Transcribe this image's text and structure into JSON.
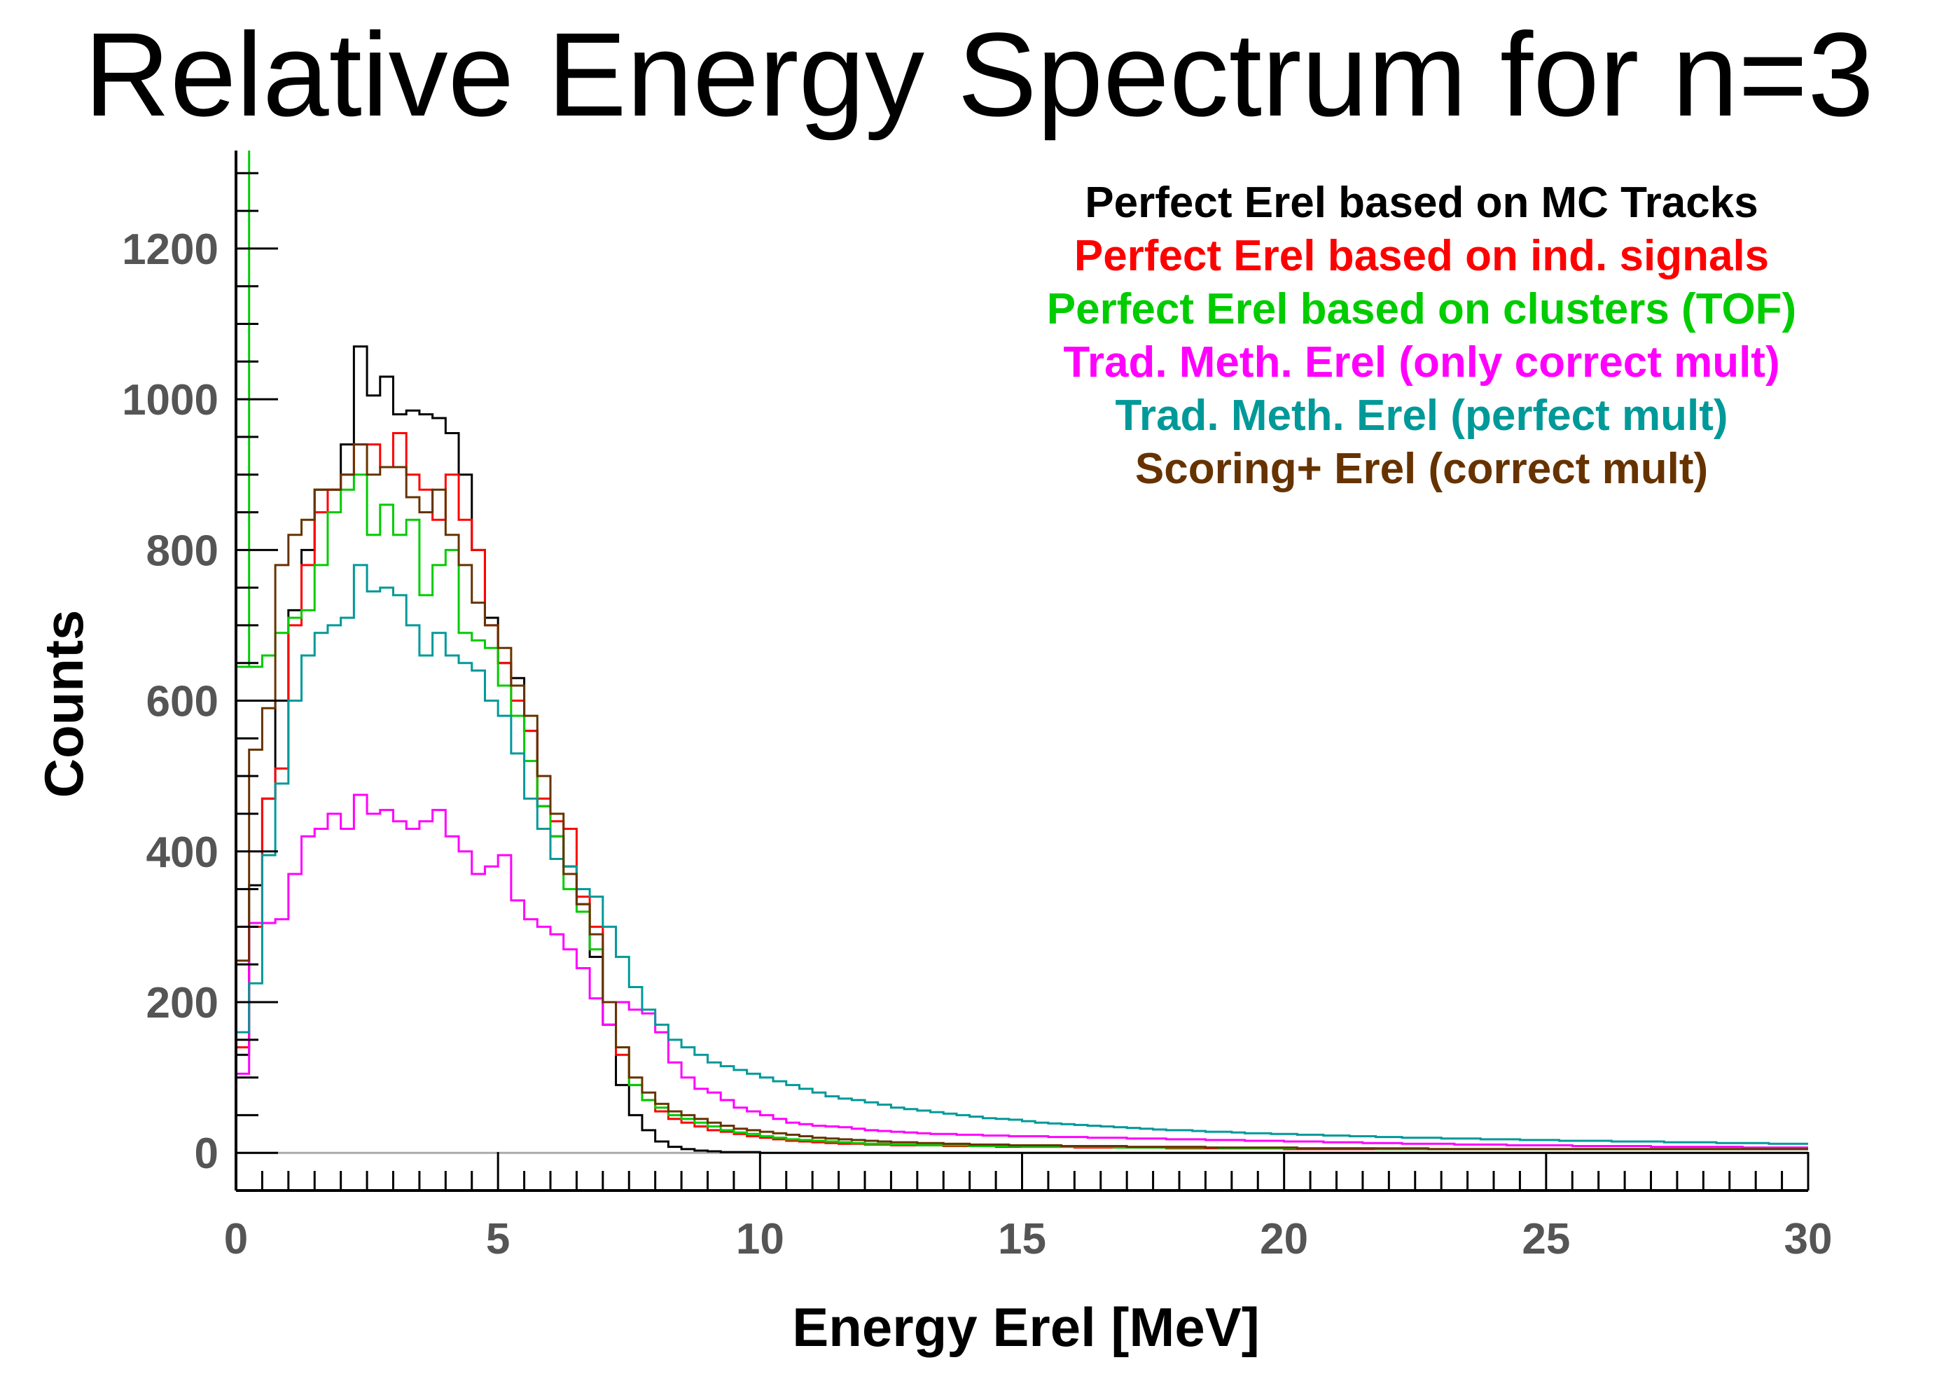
{
  "chart_data": {
    "type": "line",
    "title": "Relative Energy Spectrum for n=3",
    "xlabel": "Energy Erel [MeV]",
    "ylabel": "Counts",
    "xlim": [
      0,
      30
    ],
    "ylim": [
      -50,
      1330
    ],
    "xticks": [
      0,
      5,
      10,
      15,
      20,
      25,
      30
    ],
    "xtick_labels": [
      "0",
      "5",
      "10",
      "15",
      "20",
      "25",
      "30"
    ],
    "yticks": [
      0,
      200,
      400,
      600,
      800,
      1000,
      1200
    ],
    "ytick_labels": [
      "0",
      "200",
      "400",
      "600",
      "800",
      "1000",
      "1200"
    ],
    "grid": false,
    "bin_width": 0.25,
    "legend_position": "top-right",
    "series": [
      {
        "name": "Perfect Erel based on MC Tracks",
        "color": "#000000",
        "values": [
          130,
          355,
          470,
          600,
          720,
          800,
          880,
          880,
          940,
          1070,
          1005,
          1030,
          980,
          985,
          980,
          975,
          955,
          900,
          800,
          710,
          650,
          630,
          560,
          460,
          420,
          380,
          330,
          260,
          170,
          90,
          50,
          30,
          15,
          8,
          5,
          3,
          2,
          1,
          1,
          1,
          0,
          0,
          0,
          0,
          0,
          0,
          0,
          0,
          0,
          0,
          0,
          0,
          0,
          0,
          0,
          0,
          0,
          0,
          0,
          0,
          0,
          0,
          0,
          0,
          0,
          0,
          0,
          0,
          0,
          0,
          0,
          0,
          0,
          0,
          0,
          0,
          0,
          0,
          0,
          0,
          0,
          0,
          0,
          0,
          0,
          0,
          0,
          0,
          0,
          0,
          0,
          0,
          0,
          0,
          0,
          0,
          0,
          0,
          0,
          0,
          0,
          0,
          0,
          0,
          0,
          0,
          0,
          0,
          0,
          0,
          0,
          0,
          0,
          0,
          0,
          0,
          0,
          0,
          0,
          0
        ]
      },
      {
        "name": "Perfect Erel based on ind. signals",
        "color": "#ff0000",
        "values": [
          140,
          300,
          470,
          510,
          700,
          780,
          850,
          880,
          900,
          940,
          940,
          910,
          955,
          900,
          880,
          840,
          900,
          840,
          800,
          700,
          650,
          600,
          560,
          470,
          440,
          430,
          340,
          300,
          200,
          130,
          90,
          70,
          55,
          45,
          40,
          35,
          30,
          28,
          25,
          22,
          20,
          18,
          16,
          15,
          14,
          13,
          12,
          12,
          11,
          11,
          10,
          10,
          10,
          10,
          9,
          9,
          9,
          9,
          8,
          8,
          8,
          8,
          8,
          8,
          7,
          7,
          7,
          7,
          7,
          7,
          7,
          6,
          6,
          6,
          6,
          6,
          6,
          6,
          6,
          6,
          5,
          5,
          5,
          5,
          5,
          5,
          5,
          5,
          5,
          5,
          5,
          5,
          5,
          5,
          5,
          5,
          5,
          5,
          5,
          5,
          5,
          5,
          5,
          5,
          5,
          5,
          5,
          5,
          5,
          5,
          5,
          5,
          5,
          5,
          5,
          5,
          5,
          5,
          5,
          5
        ]
      },
      {
        "name": "Perfect Erel based on clusters (TOF)",
        "color": "#00cc00",
        "values": [
          645,
          645,
          660,
          690,
          710,
          720,
          780,
          850,
          880,
          900,
          820,
          860,
          820,
          840,
          740,
          780,
          800,
          690,
          680,
          670,
          620,
          580,
          520,
          460,
          420,
          350,
          320,
          270,
          200,
          140,
          90,
          70,
          60,
          50,
          45,
          40,
          35,
          30,
          27,
          25,
          22,
          20,
          18,
          17,
          16,
          15,
          14,
          13,
          12,
          12,
          11,
          11,
          10,
          10,
          10,
          10,
          9,
          9,
          9,
          9,
          8,
          8,
          8,
          8,
          8,
          8,
          8,
          7,
          7,
          7,
          7,
          7,
          7,
          7,
          7,
          6,
          6,
          6,
          6,
          6,
          6,
          6,
          6,
          6,
          6,
          6,
          6,
          5,
          5,
          5,
          5,
          5,
          5,
          5,
          5,
          5,
          5,
          5,
          5,
          5,
          5,
          5,
          5,
          5,
          5,
          5,
          5,
          5,
          5,
          5,
          5,
          5,
          5,
          5,
          5,
          5,
          5,
          5,
          5,
          5
        ]
      },
      {
        "name": "Trad. Meth. Erel (only correct mult)",
        "color": "#ff00ff",
        "values": [
          105,
          305,
          305,
          310,
          370,
          420,
          430,
          450,
          430,
          475,
          450,
          455,
          440,
          430,
          440,
          455,
          420,
          400,
          370,
          380,
          395,
          335,
          310,
          300,
          290,
          270,
          245,
          205,
          170,
          200,
          190,
          185,
          160,
          120,
          100,
          85,
          80,
          70,
          60,
          55,
          50,
          45,
          40,
          38,
          36,
          35,
          34,
          32,
          30,
          29,
          28,
          27,
          26,
          25,
          25,
          24,
          24,
          23,
          23,
          22,
          22,
          22,
          21,
          21,
          21,
          20,
          20,
          20,
          19,
          19,
          19,
          18,
          18,
          18,
          17,
          17,
          17,
          16,
          16,
          16,
          15,
          15,
          15,
          14,
          14,
          14,
          13,
          13,
          13,
          12,
          12,
          12,
          12,
          11,
          11,
          11,
          11,
          10,
          10,
          10,
          10,
          10,
          9,
          9,
          9,
          9,
          9,
          9,
          8,
          8,
          8,
          8,
          8,
          8,
          8,
          7,
          7,
          7,
          7,
          7
        ]
      },
      {
        "name": "Trad. Meth. Erel (perfect mult)",
        "color": "#009999",
        "values": [
          160,
          225,
          395,
          490,
          600,
          660,
          690,
          700,
          710,
          780,
          745,
          750,
          740,
          700,
          660,
          690,
          660,
          650,
          640,
          600,
          580,
          530,
          470,
          430,
          390,
          380,
          350,
          340,
          300,
          260,
          220,
          190,
          170,
          150,
          140,
          130,
          120,
          115,
          110,
          105,
          100,
          95,
          90,
          85,
          80,
          75,
          72,
          70,
          67,
          64,
          60,
          58,
          56,
          54,
          52,
          50,
          48,
          46,
          45,
          44,
          42,
          40,
          39,
          38,
          37,
          36,
          35,
          34,
          33,
          32,
          31,
          30,
          30,
          29,
          28,
          28,
          27,
          26,
          26,
          25,
          25,
          24,
          24,
          23,
          23,
          22,
          22,
          21,
          21,
          20,
          20,
          20,
          19,
          19,
          19,
          18,
          18,
          18,
          17,
          17,
          17,
          16,
          16,
          16,
          16,
          15,
          15,
          15,
          15,
          14,
          14,
          14,
          14,
          13,
          13,
          13,
          13,
          12,
          12,
          12
        ]
      },
      {
        "name": "Scoring+ Erel (correct mult)",
        "color": "#663300",
        "values": [
          255,
          535,
          590,
          780,
          820,
          840,
          880,
          880,
          900,
          940,
          900,
          910,
          910,
          870,
          850,
          880,
          820,
          780,
          730,
          700,
          670,
          620,
          580,
          500,
          450,
          370,
          330,
          290,
          200,
          140,
          100,
          80,
          65,
          55,
          50,
          45,
          40,
          36,
          32,
          30,
          28,
          26,
          24,
          22,
          20,
          19,
          18,
          17,
          16,
          15,
          14,
          14,
          13,
          13,
          12,
          12,
          11,
          11,
          11,
          10,
          10,
          10,
          10,
          9,
          9,
          9,
          9,
          9,
          8,
          8,
          8,
          8,
          8,
          8,
          7,
          7,
          7,
          7,
          7,
          7,
          7,
          6,
          6,
          6,
          6,
          6,
          6,
          6,
          6,
          6,
          6,
          5,
          5,
          5,
          5,
          5,
          5,
          5,
          5,
          5,
          5,
          5,
          5,
          5,
          5,
          5,
          5,
          5,
          5,
          5,
          5,
          5,
          5,
          5,
          5,
          5,
          5,
          5,
          5,
          5
        ]
      }
    ]
  }
}
